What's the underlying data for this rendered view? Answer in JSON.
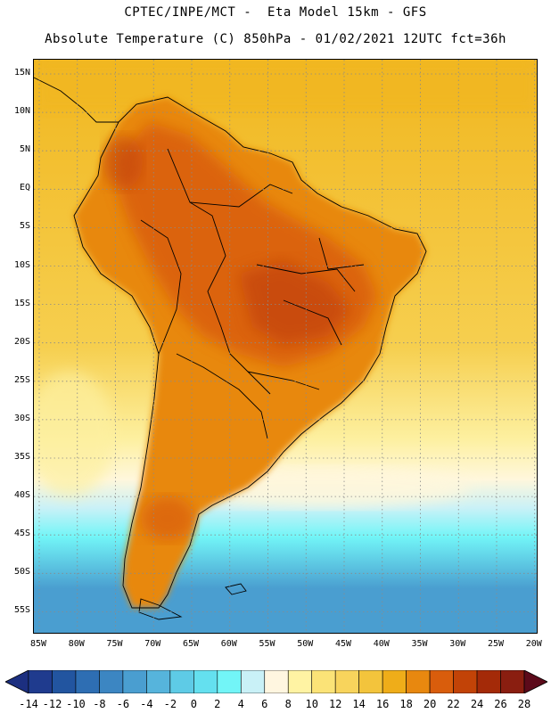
{
  "title_line1": "CPTEC/INPE/MCT -  Eta Model 15km - GFS",
  "title_line2": "Absolute Temperature (C) 850hPa - 01/02/2021 12UTC fct=36h",
  "lat_labels": [
    "15N",
    "10N",
    "5N",
    "EQ",
    "5S",
    "10S",
    "15S",
    "20S",
    "25S",
    "30S",
    "35S",
    "40S",
    "45S",
    "50S",
    "55S"
  ],
  "lon_labels": [
    "85W",
    "80W",
    "75W",
    "70W",
    "65W",
    "60W",
    "55W",
    "50W",
    "45W",
    "40W",
    "35W",
    "30W",
    "25W",
    "20W"
  ],
  "colorbar": {
    "labels": [
      "-14",
      "-12",
      "-10",
      "-8",
      "-6",
      "-4",
      "-2",
      "0",
      "2",
      "4",
      "6",
      "8",
      "10",
      "12",
      "14",
      "16",
      "18",
      "20",
      "22",
      "24",
      "26",
      "28"
    ],
    "low_color": "#1c2f80",
    "high_color": "#5c0a1a",
    "colors": [
      "#1f3b8e",
      "#2255a0",
      "#2e6eb3",
      "#3c86c2",
      "#4a9ed0",
      "#56b4dc",
      "#5ecbe6",
      "#64e0ef",
      "#72f5f7",
      "#c9f1f7",
      "#fff6e0",
      "#fff3a3",
      "#fbe377",
      "#f8d45c",
      "#f3c43c",
      "#efad19",
      "#e8880f",
      "#d95d0c",
      "#c24307",
      "#a42a08",
      "#8a1e10"
    ]
  },
  "map_colors": {
    "ocean_warm": "#f1b720",
    "ocean_mid": "#f6cf4f",
    "ocean_pale": "#fdf0a0",
    "ocean_cream": "#fff7dc",
    "ocean_light_cyan": "#c9f1f7",
    "ocean_cyan": "#72f5f7",
    "ocean_blue": "#4a9ed0",
    "land_base": "#e8880f",
    "land_hot": "#d95d0c",
    "land_hotter": "#c24307"
  }
}
